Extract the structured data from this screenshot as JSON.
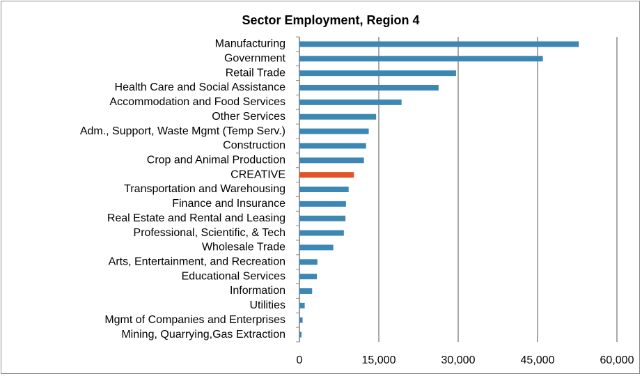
{
  "chart_data": {
    "type": "bar",
    "orientation": "horizontal",
    "title": "Sector Employment, Region 4",
    "categories": [
      "Manufacturing",
      "Government",
      "Retail Trade",
      "Health Care and Social Assistance",
      "Accommodation and Food Services",
      "Other Services",
      "Adm., Support, Waste Mgmt (Temp Serv.)",
      "Construction",
      "Crop and Animal Production",
      "CREATIVE",
      "Transportation and Warehousing",
      "Finance and Insurance",
      "Real Estate and Rental and Leasing",
      "Professional, Scientific, & Tech",
      "Wholesale Trade",
      "Arts, Entertainment, and Recreation",
      "Educational Services",
      "Information",
      "Utilities",
      "Mgmt of Companies and Enterprises",
      "Mining, Quarrying,Gas Extraction"
    ],
    "values": [
      52800,
      46000,
      29600,
      26300,
      19300,
      14500,
      13100,
      12600,
      12200,
      10300,
      9300,
      8800,
      8700,
      8400,
      6400,
      3400,
      3300,
      2400,
      1000,
      600,
      400
    ],
    "colors": [
      "#3d87b5",
      "#3d87b5",
      "#3d87b5",
      "#3d87b5",
      "#3d87b5",
      "#3d87b5",
      "#3d87b5",
      "#3d87b5",
      "#3d87b5",
      "#e2532a",
      "#3d87b5",
      "#3d87b5",
      "#3d87b5",
      "#3d87b5",
      "#3d87b5",
      "#3d87b5",
      "#3d87b5",
      "#3d87b5",
      "#3d87b5",
      "#3d87b5",
      "#3d87b5"
    ],
    "xlim": [
      0,
      60000
    ],
    "xticks": [
      0,
      {
        "value": 15000,
        "label": "15,000"
      },
      {
        "value": 30000,
        "label": "30,000"
      },
      {
        "value": 45000,
        "label": "45,000"
      },
      {
        "value": 60000,
        "label": "60,000"
      }
    ],
    "grid": true
  }
}
